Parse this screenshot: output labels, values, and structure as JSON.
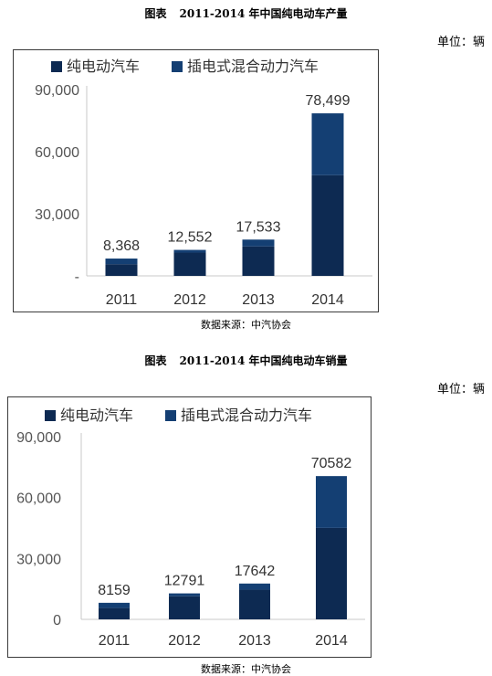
{
  "charts": [
    {
      "title_prefix": "图表",
      "title": "2011-2014 年中国纯电动车产量",
      "unit": "单位：辆",
      "source": "数据来源：中汽协会",
      "legend": [
        "纯电动汽车",
        "插电式混合动力汽车"
      ]
    },
    {
      "title_prefix": "图表",
      "title": "2011-2014 年中国纯电动车销量",
      "unit": "单位：辆",
      "source": "数据来源：中汽协会",
      "legend": [
        "纯电动汽车",
        "插电式混合动力汽车"
      ]
    }
  ],
  "colors": {
    "pure_ev": "#0d2a52",
    "phev": "#143f73",
    "axis": "#c8c8c8",
    "border": "#3a3a3a"
  },
  "chart_data": [
    {
      "type": "bar",
      "stacked": true,
      "categories": [
        "2011",
        "2012",
        "2013",
        "2014"
      ],
      "series": [
        {
          "name": "纯电动汽车",
          "values": [
            5655,
            11241,
            14243,
            48605
          ]
        },
        {
          "name": "插电式混合动力汽车",
          "values": [
            2713,
            1311,
            3290,
            29894
          ]
        }
      ],
      "totals": [
        8368,
        12552,
        17533,
        78499
      ],
      "data_labels": [
        "8,368",
        "12,552",
        "17,533",
        "78,499"
      ],
      "yticks": [
        0,
        30000,
        60000,
        90000
      ],
      "ytick_labels": [
        "-",
        "30,000",
        "60,000",
        "90,000"
      ],
      "ylim": [
        0,
        90000
      ],
      "legend_position": "top",
      "grid": false
    },
    {
      "type": "bar",
      "stacked": true,
      "categories": [
        "2011",
        "2012",
        "2013",
        "2014"
      ],
      "series": [
        {
          "name": "纯电动汽车",
          "values": [
            5579,
            11375,
            14604,
            45048
          ]
        },
        {
          "name": "插电式混合动力汽车",
          "values": [
            2580,
            1416,
            3038,
            25534
          ]
        }
      ],
      "totals": [
        8159,
        12791,
        17642,
        70582
      ],
      "data_labels": [
        "8159",
        "12791",
        "17642",
        "70582"
      ],
      "yticks": [
        0,
        30000,
        60000,
        90000
      ],
      "ytick_labels": [
        "0",
        "30,000",
        "60,000",
        "90,000"
      ],
      "ylim": [
        0,
        90000
      ],
      "legend_position": "top",
      "grid": false
    }
  ]
}
